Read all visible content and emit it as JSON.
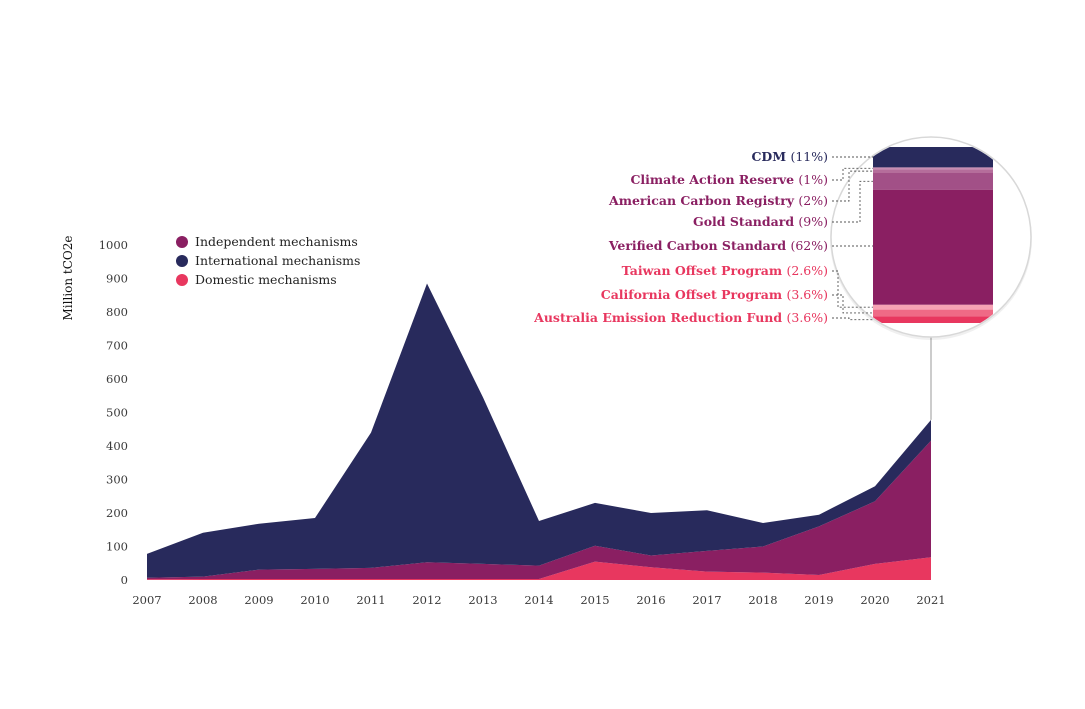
{
  "chart_data": {
    "type": "area",
    "stacked": true,
    "ylabel": "Million tCO2e",
    "xlabel": "",
    "ylim": [
      0,
      1000
    ],
    "yticks": [
      0,
      100,
      200,
      300,
      400,
      500,
      600,
      700,
      800,
      900,
      1000
    ],
    "x": [
      "2007",
      "2008",
      "2009",
      "2010",
      "2011",
      "2012",
      "2013",
      "2014",
      "2015",
      "2016",
      "2017",
      "2018",
      "2019",
      "2020",
      "2021"
    ],
    "grid": false,
    "legend_position": "top-left",
    "series": [
      {
        "name": "Domestic mechanisms",
        "color": "#e8375f",
        "values": [
          2,
          3,
          3,
          3,
          3,
          3,
          3,
          3,
          55,
          38,
          25,
          22,
          15,
          48,
          68
        ]
      },
      {
        "name": "Independent mechanisms",
        "color": "#8a1f62",
        "values": [
          5,
          7,
          28,
          30,
          33,
          50,
          45,
          40,
          47,
          35,
          62,
          78,
          145,
          187,
          348
        ]
      },
      {
        "name": "International mechanisms",
        "color": "#282a5c",
        "values": [
          71,
          131,
          137,
          152,
          404,
          832,
          497,
          133,
          128,
          127,
          121,
          70,
          35,
          45,
          62
        ]
      }
    ],
    "legend_order": [
      "Independent mechanisms",
      "International mechanisms",
      "Domestic mechanisms"
    ],
    "breakdown_2021": [
      {
        "name": "CDM",
        "pct": "(11%)",
        "value": 11,
        "color": "#282a5c",
        "text_color": "#282a5c"
      },
      {
        "name": "Climate Action Reserve",
        "pct": "(1%)",
        "value": 1,
        "color": "#c78db2",
        "text_color": "#8a1f62"
      },
      {
        "name": "American Carbon Registry",
        "pct": "(2%)",
        "value": 2,
        "color": "#b56d9b",
        "text_color": "#8a1f62"
      },
      {
        "name": "Gold Standard",
        "pct": "(9%)",
        "value": 9,
        "color": "#a25087",
        "text_color": "#8a1f62"
      },
      {
        "name": "Verified Carbon Standard",
        "pct": "(62%)",
        "value": 62,
        "color": "#8a1f62",
        "text_color": "#8a1f62"
      },
      {
        "name": "Taiwan Offset Program",
        "pct": "(2.6%)",
        "value": 2.6,
        "color": "#f7a2b4",
        "text_color": "#e8375f"
      },
      {
        "name": "California Offset Program",
        "pct": "(3.6%)",
        "value": 3.6,
        "color": "#ef6a86",
        "text_color": "#e8375f"
      },
      {
        "name": "Australia Emission Reduction Fund",
        "pct": "(3.6%)",
        "value": 3.6,
        "color": "#e8375f",
        "text_color": "#e8375f"
      }
    ]
  }
}
